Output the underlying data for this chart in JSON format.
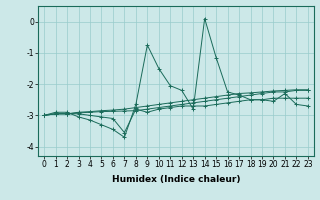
{
  "xlabel": "Humidex (Indice chaleur)",
  "ylabel": "",
  "background_color": "#cce8e8",
  "grid_color": "#99cccc",
  "line_color": "#1a6b5a",
  "xlim": [
    -0.5,
    23.5
  ],
  "ylim": [
    -4.3,
    0.5
  ],
  "yticks": [
    0,
    -1,
    -2,
    -3,
    -4
  ],
  "xticks": [
    0,
    1,
    2,
    3,
    4,
    5,
    6,
    7,
    8,
    9,
    10,
    11,
    12,
    13,
    14,
    15,
    16,
    17,
    18,
    19,
    20,
    21,
    22,
    23
  ],
  "series": [
    [
      -3.0,
      -2.9,
      -2.9,
      -3.05,
      -3.15,
      -3.3,
      -3.45,
      -3.7,
      -2.65,
      -0.75,
      -1.5,
      -2.05,
      -2.2,
      -2.8,
      0.1,
      -1.15,
      -2.25,
      -2.35,
      -2.5,
      -2.5,
      -2.55,
      -2.3,
      -2.65,
      -2.7
    ],
    [
      -3.0,
      -2.95,
      -2.95,
      -2.95,
      -3.0,
      -3.05,
      -3.1,
      -3.55,
      -2.8,
      -2.9,
      -2.8,
      -2.75,
      -2.7,
      -2.7,
      -2.7,
      -2.65,
      -2.6,
      -2.55,
      -2.5,
      -2.5,
      -2.45,
      -2.45,
      -2.45,
      -2.45
    ],
    [
      -3.0,
      -2.95,
      -2.95,
      -2.9,
      -2.88,
      -2.85,
      -2.83,
      -2.8,
      -2.75,
      -2.7,
      -2.65,
      -2.6,
      -2.55,
      -2.5,
      -2.45,
      -2.4,
      -2.35,
      -2.3,
      -2.28,
      -2.25,
      -2.22,
      -2.2,
      -2.18,
      -2.18
    ],
    [
      -3.0,
      -2.95,
      -2.95,
      -2.92,
      -2.9,
      -2.88,
      -2.87,
      -2.86,
      -2.85,
      -2.8,
      -2.75,
      -2.7,
      -2.65,
      -2.6,
      -2.55,
      -2.5,
      -2.45,
      -2.4,
      -2.35,
      -2.3,
      -2.25,
      -2.25,
      -2.2,
      -2.2
    ]
  ],
  "marker": "+",
  "tick_fontsize": 5.5,
  "xlabel_fontsize": 6.5
}
